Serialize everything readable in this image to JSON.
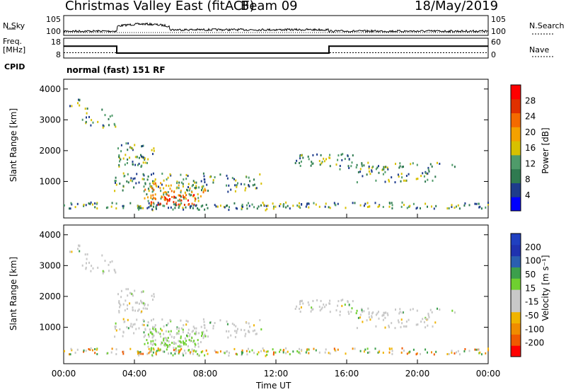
{
  "header": {
    "title": "Christmas Valley East (fitACF)",
    "beam": "Beam 09",
    "date": "18/May/2019"
  },
  "side_labels": {
    "nsky": "N.Sky",
    "freq": "Freq.",
    "freq_unit": "[MHz]",
    "cpid": "CPID",
    "nsearch": "N.Search",
    "nave": "Nave"
  },
  "cpid_text": "normal (fast) 151 RF",
  "colors": {
    "power_scale": [
      "#0000ff",
      "#1e3c8c",
      "#2f7a50",
      "#4f9b6a",
      "#d8c000",
      "#f4a100",
      "#f46a00",
      "#e03000",
      "#ff0000"
    ],
    "velocity_scale": [
      "#ff0000",
      "#f05a00",
      "#f08c00",
      "#f0b400",
      "#c8c8c8",
      "#c8c8c8",
      "#6fd030",
      "#3c9f4c",
      "#2a5fb0",
      "#1f32b0",
      "#2040c0"
    ]
  },
  "chart_data": [
    {
      "type": "line",
      "title": "N.Sky / N.Search",
      "left_ticks": [
        "10^5",
        "10^0"
      ],
      "right_ticks": [
        "10^5",
        "10^0"
      ],
      "x": [
        "00:00",
        "04:00",
        "08:00",
        "12:00",
        "16:00",
        "20:00",
        "00:00"
      ]
    },
    {
      "type": "line",
      "title": "Freq. / Nave",
      "left_ticks": [
        "18",
        "8"
      ],
      "right_ticks": [
        "60",
        "0"
      ],
      "series": [
        {
          "name": "Freq. [MHz]",
          "x": [
            0,
            3,
            3,
            15,
            15,
            24
          ],
          "y": [
            14,
            14,
            10.5,
            10.5,
            14,
            14
          ]
        },
        {
          "name": "Nave",
          "x": [
            0,
            24
          ],
          "y": [
            16,
            16
          ]
        }
      ]
    },
    {
      "type": "heatmap",
      "ylabel": "Slant Range [km]",
      "yticks": [
        "4000",
        "3000",
        "2000",
        "1000"
      ],
      "colorbar_label": "Power [dB]",
      "colorbar_ticks": [
        "28",
        "24",
        "20",
        "16",
        "12",
        "8",
        "4"
      ]
    },
    {
      "type": "heatmap",
      "ylabel": "Slant Range [km]",
      "yticks": [
        "4000",
        "3000",
        "2000",
        "1000"
      ],
      "colorbar_label": "Velocity [m s⁻¹]",
      "colorbar_ticks": [
        "200",
        "100",
        "50",
        "15",
        "-15",
        "-50",
        "-100",
        "-200"
      ],
      "xlabel": "Time UT",
      "xticks": [
        "00:00",
        "04:00",
        "08:00",
        "12:00",
        "16:00",
        "20:00",
        "00:00"
      ]
    }
  ]
}
